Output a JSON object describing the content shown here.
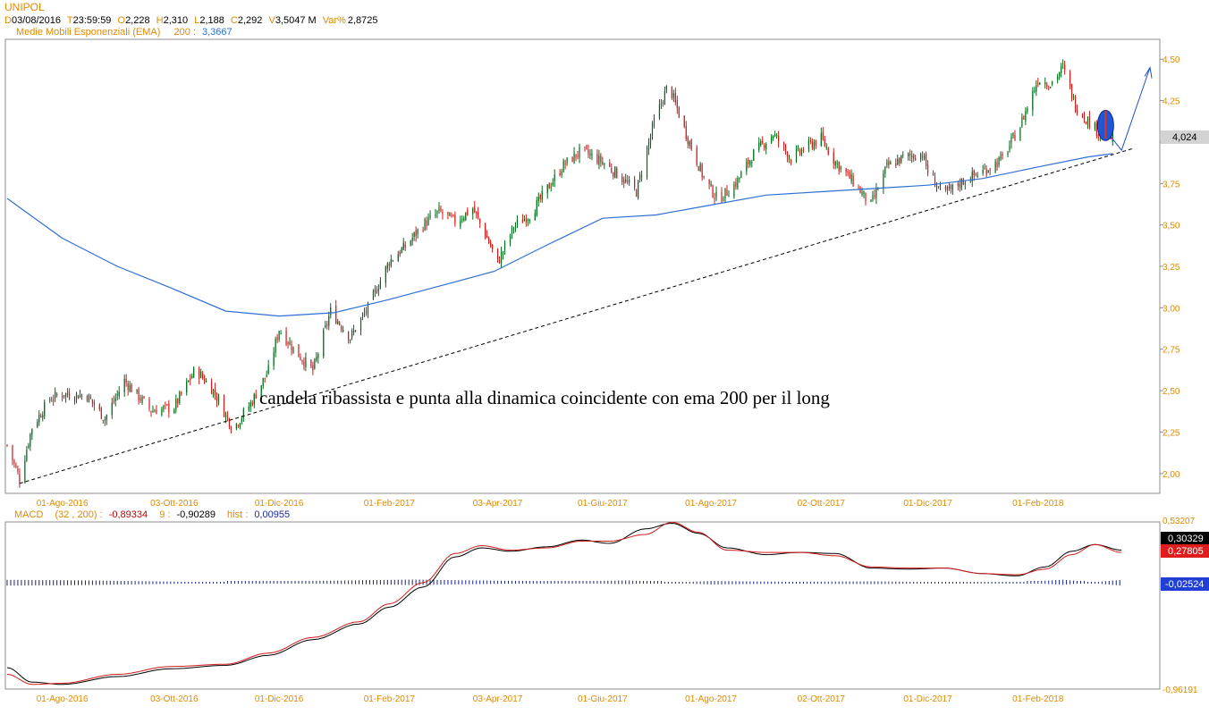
{
  "colors": {
    "header_orange": "#e08a00",
    "ema_blue": "#2e6fd6",
    "up_green": "#006b1a",
    "down_red": "#d11a1a",
    "macd_black": "#000000",
    "signal_red": "#d11a1a",
    "hist_navy": "#16207a",
    "tag_gray": "#d3d3d3",
    "axis_orange": "#e08a00",
    "macd_neg_red": "#c00000",
    "hist_blue": "#1c2ca8"
  },
  "header": {
    "symbol": "UNIPOL",
    "d_label": "D",
    "date": "03/08/2016",
    "t_label": "T",
    "time": "23:59:59",
    "o_label": "O",
    "open": "2,228",
    "h_label": "H",
    "high": "2,310",
    "l_label": "L",
    "low": "2,188",
    "c_label": "C",
    "close": "2,292",
    "v_label": "V",
    "volume": "3,5047 M",
    "var_label": "Var%",
    "var": "2,8725",
    "ema_label": "Medie Mobili Esponenziali (EMA)",
    "ema_period": "200 :",
    "ema_value": "3,3667"
  },
  "macd_header": {
    "label": "MACD",
    "params": "(32 , 200) :",
    "macd_value": "-0,89334",
    "signal_label": "9 :",
    "signal_value": "-0,90289",
    "hist_label": "hist :",
    "hist_value": "0,00955"
  },
  "annotation": "candela ribassista e punta alla dinamica coincidente con ema 200 per il long",
  "price_tag": "4,024",
  "macd_tags": {
    "macd": "0,30329",
    "signal": "0,27805",
    "hist": "-0,02524"
  },
  "chart_data": [
    {
      "type": "candlestick",
      "title": "UNIPOL",
      "x_labels": [
        "01-Ago-2016",
        "03-Ott-2016",
        "01-Dic-2016",
        "01-Feb-2017",
        "03-Apr-2017",
        "01-Giu-2017",
        "01-Ago-2017",
        "02-Ott-2017",
        "01-Dic-2017",
        "01-Feb-2018"
      ],
      "y_ticks": [
        "4,50",
        "4,25",
        "4,00",
        "3,75",
        "3,50",
        "3,25",
        "3,00",
        "2,75",
        "2,50",
        "2,25",
        "2,00"
      ],
      "ylim": [
        1.88,
        4.62
      ],
      "close_path": [
        [
          "2016-07-01",
          2.17
        ],
        [
          "2016-07-08",
          1.97
        ],
        [
          "2016-07-15",
          2.28
        ],
        [
          "2016-07-25",
          2.45
        ],
        [
          "2016-08-01",
          2.48
        ],
        [
          "2016-08-15",
          2.47
        ],
        [
          "2016-08-25",
          2.33
        ],
        [
          "2016-09-05",
          2.56
        ],
        [
          "2016-09-20",
          2.38
        ],
        [
          "2016-10-03",
          2.4
        ],
        [
          "2016-10-15",
          2.63
        ],
        [
          "2016-10-25",
          2.5
        ],
        [
          "2016-11-05",
          2.27
        ],
        [
          "2016-11-15",
          2.42
        ],
        [
          "2016-11-25",
          2.62
        ],
        [
          "2016-12-01",
          2.87
        ],
        [
          "2016-12-10",
          2.74
        ],
        [
          "2016-12-20",
          2.62
        ],
        [
          "2016-12-30",
          2.98
        ],
        [
          "2017-01-10",
          2.82
        ],
        [
          "2017-01-20",
          3.0
        ],
        [
          "2017-02-01",
          3.28
        ],
        [
          "2017-02-10",
          3.37
        ],
        [
          "2017-02-20",
          3.5
        ],
        [
          "2017-03-01",
          3.58
        ],
        [
          "2017-03-10",
          3.52
        ],
        [
          "2017-03-20",
          3.6
        ],
        [
          "2017-03-28",
          3.42
        ],
        [
          "2017-04-03",
          3.27
        ],
        [
          "2017-04-12",
          3.49
        ],
        [
          "2017-04-22",
          3.57
        ],
        [
          "2017-05-01",
          3.72
        ],
        [
          "2017-05-10",
          3.86
        ],
        [
          "2017-05-20",
          3.95
        ],
        [
          "2017-06-01",
          3.88
        ],
        [
          "2017-06-10",
          3.8
        ],
        [
          "2017-06-20",
          3.7
        ],
        [
          "2017-06-30",
          4.12
        ],
        [
          "2017-07-08",
          4.35
        ],
        [
          "2017-07-18",
          4.05
        ],
        [
          "2017-07-28",
          3.78
        ],
        [
          "2017-08-05",
          3.65
        ],
        [
          "2017-08-15",
          3.75
        ],
        [
          "2017-08-25",
          3.93
        ],
        [
          "2017-09-05",
          4.05
        ],
        [
          "2017-09-15",
          3.9
        ],
        [
          "2017-09-25",
          3.98
        ],
        [
          "2017-10-02",
          4.02
        ],
        [
          "2017-10-10",
          3.88
        ],
        [
          "2017-10-20",
          3.76
        ],
        [
          "2017-10-30",
          3.62
        ],
        [
          "2017-11-08",
          3.85
        ],
        [
          "2017-11-18",
          3.91
        ],
        [
          "2017-11-28",
          3.93
        ],
        [
          "2017-12-01",
          3.82
        ],
        [
          "2017-12-10",
          3.68
        ],
        [
          "2017-12-20",
          3.76
        ],
        [
          "2018-01-02",
          3.83
        ],
        [
          "2018-01-12",
          3.9
        ],
        [
          "2018-01-22",
          4.1
        ],
        [
          "2018-02-01",
          4.38
        ],
        [
          "2018-02-08",
          4.35
        ],
        [
          "2018-02-15",
          4.45
        ],
        [
          "2018-02-22",
          4.22
        ],
        [
          "2018-03-01",
          4.13
        ],
        [
          "2018-03-08",
          4.05
        ],
        [
          "2018-03-15",
          4.02
        ]
      ],
      "ema200": [
        [
          "2016-07-01",
          3.66
        ],
        [
          "2016-08-01",
          3.42
        ],
        [
          "2016-09-01",
          3.25
        ],
        [
          "2016-10-01",
          3.12
        ],
        [
          "2016-11-01",
          2.98
        ],
        [
          "2016-12-01",
          2.95
        ],
        [
          "2017-01-01",
          2.97
        ],
        [
          "2017-02-01",
          3.05
        ],
        [
          "2017-03-01",
          3.13
        ],
        [
          "2017-04-01",
          3.22
        ],
        [
          "2017-05-01",
          3.38
        ],
        [
          "2017-06-01",
          3.54
        ],
        [
          "2017-07-01",
          3.56
        ],
        [
          "2017-08-01",
          3.62
        ],
        [
          "2017-09-01",
          3.68
        ],
        [
          "2017-10-01",
          3.7
        ],
        [
          "2017-11-01",
          3.72
        ],
        [
          "2017-12-01",
          3.74
        ],
        [
          "2018-01-01",
          3.78
        ],
        [
          "2018-02-01",
          3.85
        ],
        [
          "2018-03-01",
          3.91
        ],
        [
          "2018-03-15",
          3.93
        ]
      ],
      "trendline": [
        [
          "2016-07-08",
          1.94
        ],
        [
          "2018-03-26",
          3.96
        ]
      ],
      "projection": [
        [
          "2018-03-09",
          4.1
        ],
        [
          "2018-03-20",
          3.95
        ],
        [
          "2018-04-05",
          4.45
        ]
      ]
    },
    {
      "type": "line",
      "title": "MACD",
      "x_labels": [
        "01-Ago-2016",
        "03-Ott-2016",
        "01-Dic-2016",
        "01-Feb-2017",
        "03-Apr-2017",
        "01-Giu-2017",
        "01-Ago-2017",
        "02-Ott-2017",
        "01-Dic-2017",
        "01-Feb-2018"
      ],
      "y_ticks": [
        "0,53207",
        "-0,96191"
      ],
      "ylim": [
        -0.96191,
        0.53207
      ],
      "series": [
        {
          "name": "MACD",
          "values": [
            [
              "2016-07-01",
              -0.77
            ],
            [
              "2016-07-15",
              -0.9
            ],
            [
              "2016-08-01",
              -0.92
            ],
            [
              "2016-09-01",
              -0.85
            ],
            [
              "2016-10-01",
              -0.78
            ],
            [
              "2016-11-01",
              -0.75
            ],
            [
              "2016-11-25",
              -0.66
            ],
            [
              "2016-12-20",
              -0.52
            ],
            [
              "2017-01-15",
              -0.38
            ],
            [
              "2017-02-01",
              -0.23
            ],
            [
              "2017-02-20",
              -0.05
            ],
            [
              "2017-03-10",
              0.22
            ],
            [
              "2017-03-25",
              0.3
            ],
            [
              "2017-04-10",
              0.27
            ],
            [
              "2017-05-01",
              0.31
            ],
            [
              "2017-05-20",
              0.37
            ],
            [
              "2017-06-05",
              0.34
            ],
            [
              "2017-06-25",
              0.47
            ],
            [
              "2017-07-10",
              0.52
            ],
            [
              "2017-07-25",
              0.43
            ],
            [
              "2017-08-10",
              0.3
            ],
            [
              "2017-09-01",
              0.24
            ],
            [
              "2017-09-20",
              0.26
            ],
            [
              "2017-10-10",
              0.25
            ],
            [
              "2017-10-30",
              0.12
            ],
            [
              "2017-11-20",
              0.11
            ],
            [
              "2017-12-10",
              0.12
            ],
            [
              "2018-01-01",
              0.07
            ],
            [
              "2018-01-20",
              0.05
            ],
            [
              "2018-02-05",
              0.13
            ],
            [
              "2018-02-20",
              0.27
            ],
            [
              "2018-03-05",
              0.33
            ],
            [
              "2018-03-20",
              0.28
            ]
          ]
        },
        {
          "name": "Signal",
          "values": [
            [
              "2016-07-01",
              -0.83
            ],
            [
              "2016-07-15",
              -0.92
            ],
            [
              "2016-08-01",
              -0.91
            ],
            [
              "2016-09-01",
              -0.83
            ],
            [
              "2016-10-01",
              -0.76
            ],
            [
              "2016-11-01",
              -0.74
            ],
            [
              "2016-11-25",
              -0.64
            ],
            [
              "2016-12-20",
              -0.5
            ],
            [
              "2017-01-15",
              -0.36
            ],
            [
              "2017-02-01",
              -0.2
            ],
            [
              "2017-02-20",
              -0.01
            ],
            [
              "2017-03-10",
              0.25
            ],
            [
              "2017-03-25",
              0.32
            ],
            [
              "2017-04-10",
              0.28
            ],
            [
              "2017-05-01",
              0.3
            ],
            [
              "2017-05-20",
              0.36
            ],
            [
              "2017-06-05",
              0.36
            ],
            [
              "2017-06-25",
              0.42
            ],
            [
              "2017-07-10",
              0.53
            ],
            [
              "2017-07-25",
              0.44
            ],
            [
              "2017-08-10",
              0.28
            ],
            [
              "2017-09-01",
              0.26
            ],
            [
              "2017-09-20",
              0.26
            ],
            [
              "2017-10-10",
              0.23
            ],
            [
              "2017-10-30",
              0.13
            ],
            [
              "2017-11-20",
              0.12
            ],
            [
              "2017-12-10",
              0.12
            ],
            [
              "2018-01-01",
              0.07
            ],
            [
              "2018-01-20",
              0.06
            ],
            [
              "2018-02-05",
              0.11
            ],
            [
              "2018-02-20",
              0.24
            ],
            [
              "2018-03-05",
              0.33
            ],
            [
              "2018-03-20",
              0.26
            ]
          ]
        },
        {
          "name": "hist",
          "type": "bar",
          "values": [
            [
              "2016-07-01",
              -0.025
            ],
            [
              "2016-08-15",
              -0.02
            ],
            [
              "2016-10-01",
              -0.01
            ],
            [
              "2016-11-15",
              0.005
            ],
            [
              "2017-01-01",
              0.01
            ],
            [
              "2017-02-15",
              0.02
            ],
            [
              "2017-04-01",
              0.01
            ],
            [
              "2017-05-15",
              0.005
            ],
            [
              "2017-06-15",
              0.012
            ],
            [
              "2017-08-01",
              -0.015
            ],
            [
              "2017-09-15",
              -0.008
            ],
            [
              "2017-11-01",
              -0.012
            ],
            [
              "2017-12-15",
              -0.005
            ],
            [
              "2018-01-15",
              -0.008
            ],
            [
              "2018-02-15",
              0.018
            ],
            [
              "2018-03-20",
              -0.025
            ]
          ]
        }
      ]
    }
  ]
}
